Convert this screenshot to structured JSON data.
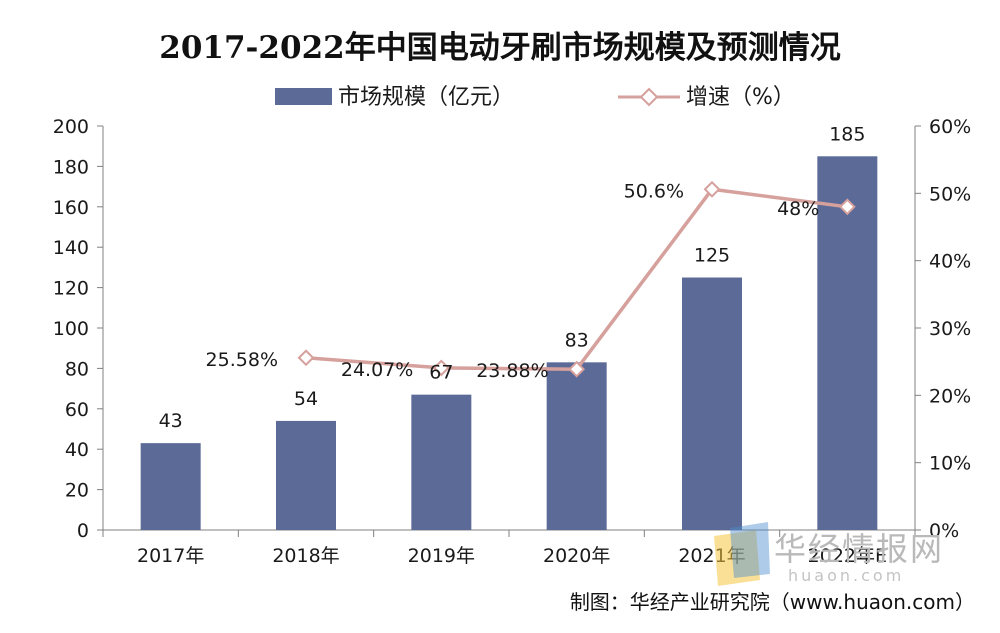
{
  "chart_data": {
    "type": "bar",
    "title": "2017-2022年中国电动牙刷市场规模及预测情况",
    "categories": [
      "2017年",
      "2018年",
      "2019年",
      "2020年",
      "2021年",
      "2022年E"
    ],
    "series": [
      {
        "name": "市场规模（亿元）",
        "type": "bar",
        "axis": "left",
        "values": [
          43,
          54,
          67,
          83,
          125,
          185
        ],
        "labels": [
          "43",
          "54",
          "67",
          "83",
          "125",
          "185"
        ]
      },
      {
        "name": "增速（%）",
        "type": "line",
        "axis": "right",
        "values": [
          null,
          25.58,
          24.07,
          23.88,
          50.6,
          48
        ],
        "labels": [
          "",
          "25.58%",
          "24.07%",
          "23.88%",
          "50.6%",
          "48%"
        ]
      }
    ],
    "y_left": {
      "min": 0,
      "max": 200,
      "step": 20
    },
    "y_right": {
      "min": 0,
      "max": 60,
      "step": 10,
      "unit": "%"
    },
    "left_ticks": [
      "0",
      "20",
      "40",
      "60",
      "80",
      "100",
      "120",
      "140",
      "160",
      "180",
      "200"
    ],
    "right_ticks": [
      "0%",
      "10%",
      "20%",
      "30%",
      "40%",
      "50%",
      "60%"
    ],
    "legend_position": "top-center",
    "grid": false
  },
  "source": "制图：华经产业研究院（www.huaon.com）",
  "watermark": {
    "name": "华经情报网",
    "domain": "huaon.com"
  },
  "colors": {
    "bar": "#5b6a97",
    "line": "#d6a09c",
    "marker_fill": "#ffffff",
    "text": "#1a1a1a"
  }
}
